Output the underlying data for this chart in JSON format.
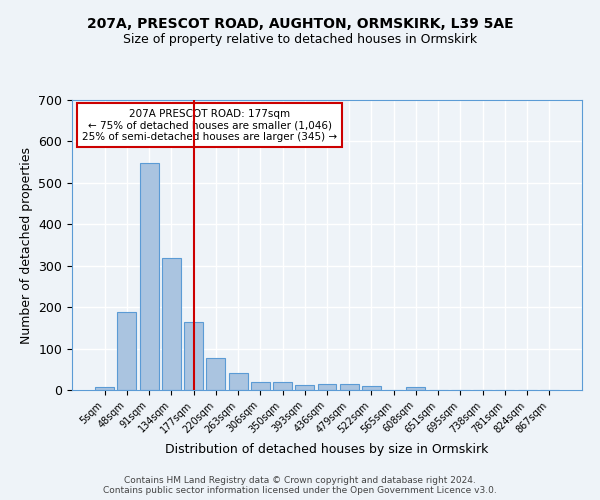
{
  "title1": "207A, PRESCOT ROAD, AUGHTON, ORMSKIRK, L39 5AE",
  "title2": "Size of property relative to detached houses in Ormskirk",
  "xlabel": "Distribution of detached houses by size in Ormskirk",
  "ylabel": "Number of detached properties",
  "bin_labels": [
    "5sqm",
    "48sqm",
    "91sqm",
    "134sqm",
    "177sqm",
    "220sqm",
    "263sqm",
    "306sqm",
    "350sqm",
    "393sqm",
    "436sqm",
    "479sqm",
    "522sqm",
    "565sqm",
    "608sqm",
    "651sqm",
    "695sqm",
    "738sqm",
    "781sqm",
    "824sqm",
    "867sqm"
  ],
  "bar_heights": [
    8,
    188,
    548,
    318,
    165,
    78,
    42,
    20,
    20,
    13,
    14,
    14,
    10,
    0,
    7,
    0,
    0,
    0,
    0,
    0,
    0
  ],
  "bar_color": "#aac4e0",
  "bar_edge_color": "#5b9bd5",
  "vline_color": "#cc0000",
  "annotation_text": "207A PRESCOT ROAD: 177sqm\n← 75% of detached houses are smaller (1,046)\n25% of semi-detached houses are larger (345) →",
  "annotation_box_color": "#ffffff",
  "annotation_box_edge": "#cc0000",
  "footnote1": "Contains HM Land Registry data © Crown copyright and database right 2024.",
  "footnote2": "Contains public sector information licensed under the Open Government Licence v3.0.",
  "ylim": [
    0,
    700
  ],
  "yticks": [
    0,
    100,
    200,
    300,
    400,
    500,
    600,
    700
  ],
  "bg_color": "#eef3f8",
  "plot_bg_color": "#eef3f8",
  "grid_color": "#ffffff"
}
